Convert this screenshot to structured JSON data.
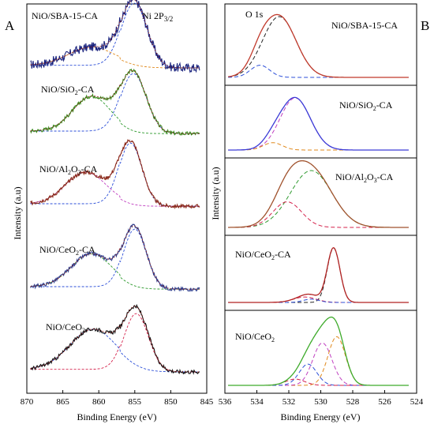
{
  "chart_data": [
    {
      "panel_label": "A",
      "type": "line",
      "chart_style": "stacked XPS spectra with dashed fitted component curves",
      "header_label": "Ni 2P3/2",
      "header_label_parts": {
        "main": "Ni 2P",
        "sub": "3/2"
      },
      "xlabel": "Binding Energy (eV)",
      "ylabel": "Intensity (a.u)",
      "xlim": [
        870,
        845
      ],
      "x_ticks": [
        "870",
        "865",
        "860",
        "855",
        "850",
        "845"
      ],
      "x_reversed": true,
      "grid": false,
      "legend": "none",
      "spectra": [
        {
          "label": "NiO/SBA-15-CA",
          "label_parts": {
            "main": "NiO/SBA-15-CA"
          },
          "line_color": "#1a237e"
        },
        {
          "label": "NiO/SiO2-CA",
          "label_parts": {
            "main": "NiO/SiO",
            "sub": "2",
            "after": "-CA"
          },
          "line_color": "#3d8c1e"
        },
        {
          "label": "NiO/Al2O3-CA",
          "label_parts": {
            "main": "NiO/Al",
            "sub": "2",
            "mid": "O",
            "sub2": "3",
            "after": "-CA"
          },
          "line_color": "#8b2e1c"
        },
        {
          "label": "NiO/CeO2-CA",
          "label_parts": {
            "main": "NiO/CeO",
            "sub": "2",
            "after": "-CA"
          },
          "line_color": "#2f3f8f"
        },
        {
          "label": "NiO/CeO2",
          "label_parts": {
            "main": "NiO/CeO",
            "sub": "2"
          },
          "line_color": "#111111"
        }
      ],
      "component_colors": [
        "#d4204a",
        "#2c4fd8",
        "#2e9a2e",
        "#e08a1e",
        "#c040c0"
      ]
    },
    {
      "panel_label": "B",
      "type": "line",
      "chart_style": "separated XPS spectra panels with fitted component curves",
      "header_label": "O 1s",
      "xlabel": "Binding Energy (eV)",
      "ylabel": "Intensity (a.u)",
      "xlim": [
        536,
        524
      ],
      "x_ticks": [
        "536",
        "534",
        "532",
        "530",
        "528",
        "526",
        "524"
      ],
      "x_reversed": true,
      "grid": false,
      "legend": "none",
      "spectra": [
        {
          "label": "NiO/SBA-15-CA",
          "label_parts": {
            "main": "NiO/SBA-15-CA"
          },
          "line_color": "#c0392b"
        },
        {
          "label": "NiO/SiO2-CA",
          "label_parts": {
            "main": "NiO/SiO",
            "sub": "2",
            "after": "-CA"
          },
          "line_color": "#3a3ad6"
        },
        {
          "label": "NiO/Al2O3-CA",
          "label_parts": {
            "main": "NiO/Al",
            "sub": "2",
            "mid": "O",
            "sub2": "3",
            "after": "-CA"
          },
          "line_color": "#a0522d"
        },
        {
          "label": "NiO/CeO2-CA",
          "label_parts": {
            "main": "NiO/CeO",
            "sub": "2",
            "after": "-CA"
          },
          "line_color": "#b22222"
        },
        {
          "label": "NiO/CeO2",
          "label_parts": {
            "main": "NiO/CeO",
            "sub": "2"
          },
          "line_color": "#3daa2a"
        }
      ],
      "component_colors": [
        "#d4204a",
        "#2c4fd8",
        "#2e9a2e",
        "#e08a1e",
        "#c040c0",
        "#222222"
      ]
    }
  ]
}
